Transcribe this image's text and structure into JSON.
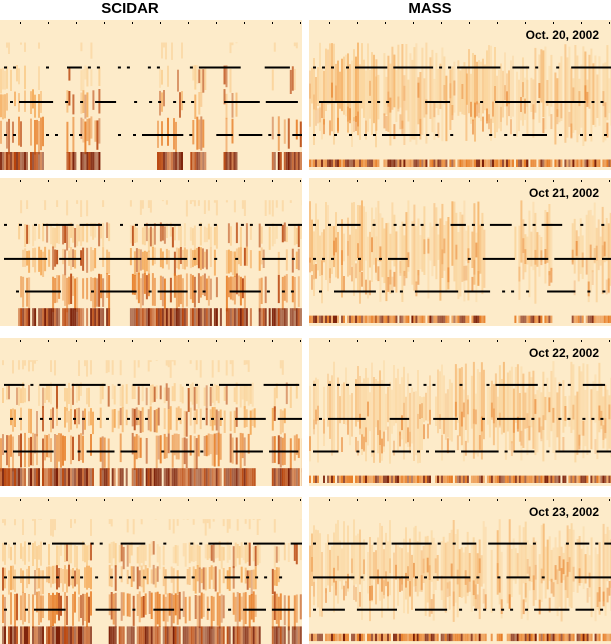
{
  "columns": {
    "left": "SCIDAR",
    "right": "MASS"
  },
  "colors": {
    "background": "#fdebc9",
    "light": "#f9cc8c",
    "medium": "#f3a653",
    "strong": "#e67a22",
    "deep": "#b8440c",
    "darkest": "#7a1c04",
    "marker": "#000000"
  },
  "chart_data": [
    {
      "type": "heatmap",
      "instrument": "SCIDAR",
      "date": "",
      "row": 0,
      "col": 0,
      "segments": [
        [
          0.0,
          0.02,
          0.6
        ],
        [
          0.02,
          0.14,
          0.55
        ],
        [
          0.22,
          0.33,
          0.75
        ],
        [
          0.52,
          0.6,
          0.4
        ],
        [
          0.63,
          0.68,
          0.5
        ],
        [
          0.74,
          0.78,
          0.35
        ],
        [
          0.9,
          1.0,
          0.25
        ]
      ]
    },
    {
      "type": "heatmap",
      "instrument": "MASS",
      "date": "Oct. 20, 2002",
      "row": 0,
      "col": 1,
      "segments": [
        [
          0.0,
          0.22,
          0.8
        ],
        [
          0.22,
          0.52,
          0.7
        ],
        [
          0.52,
          0.72,
          0.65
        ],
        [
          0.72,
          1.0,
          0.6
        ]
      ]
    },
    {
      "type": "heatmap",
      "instrument": "SCIDAR",
      "date": "",
      "row": 1,
      "col": 0,
      "segments": [
        [
          0.06,
          0.36,
          0.9
        ],
        [
          0.43,
          0.83,
          0.9
        ],
        [
          0.85,
          0.89,
          0.6
        ],
        [
          0.9,
          1.0,
          0.5
        ]
      ]
    },
    {
      "type": "heatmap",
      "instrument": "MASS",
      "date": "Oct 21, 2002",
      "row": 1,
      "col": 1,
      "segments": [
        [
          0.0,
          0.22,
          0.7
        ],
        [
          0.22,
          0.58,
          0.75
        ],
        [
          0.68,
          0.8,
          0.65
        ],
        [
          0.87,
          1.0,
          0.55
        ]
      ]
    },
    {
      "type": "heatmap",
      "instrument": "SCIDAR",
      "date": "",
      "row": 2,
      "col": 0,
      "segments": [
        [
          0.0,
          0.31,
          0.8
        ],
        [
          0.33,
          0.84,
          0.85
        ],
        [
          0.9,
          1.0,
          0.55
        ]
      ]
    },
    {
      "type": "heatmap",
      "instrument": "MASS",
      "date": "Oct 22, 2002",
      "row": 2,
      "col": 1,
      "segments": [
        [
          0.0,
          0.45,
          0.35
        ],
        [
          0.45,
          0.7,
          0.6
        ],
        [
          0.7,
          1.0,
          0.55
        ]
      ]
    },
    {
      "type": "heatmap",
      "instrument": "SCIDAR",
      "date": "",
      "row": 3,
      "col": 0,
      "segments": [
        [
          0.0,
          0.3,
          0.9
        ],
        [
          0.36,
          0.86,
          0.9
        ],
        [
          0.9,
          1.0,
          0.55
        ]
      ]
    },
    {
      "type": "heatmap",
      "instrument": "MASS",
      "date": "Oct 23, 2002",
      "row": 3,
      "col": 1,
      "segments": [
        [
          0.0,
          0.35,
          0.45
        ],
        [
          0.35,
          0.8,
          0.55
        ],
        [
          0.8,
          1.0,
          0.5
        ]
      ]
    }
  ]
}
